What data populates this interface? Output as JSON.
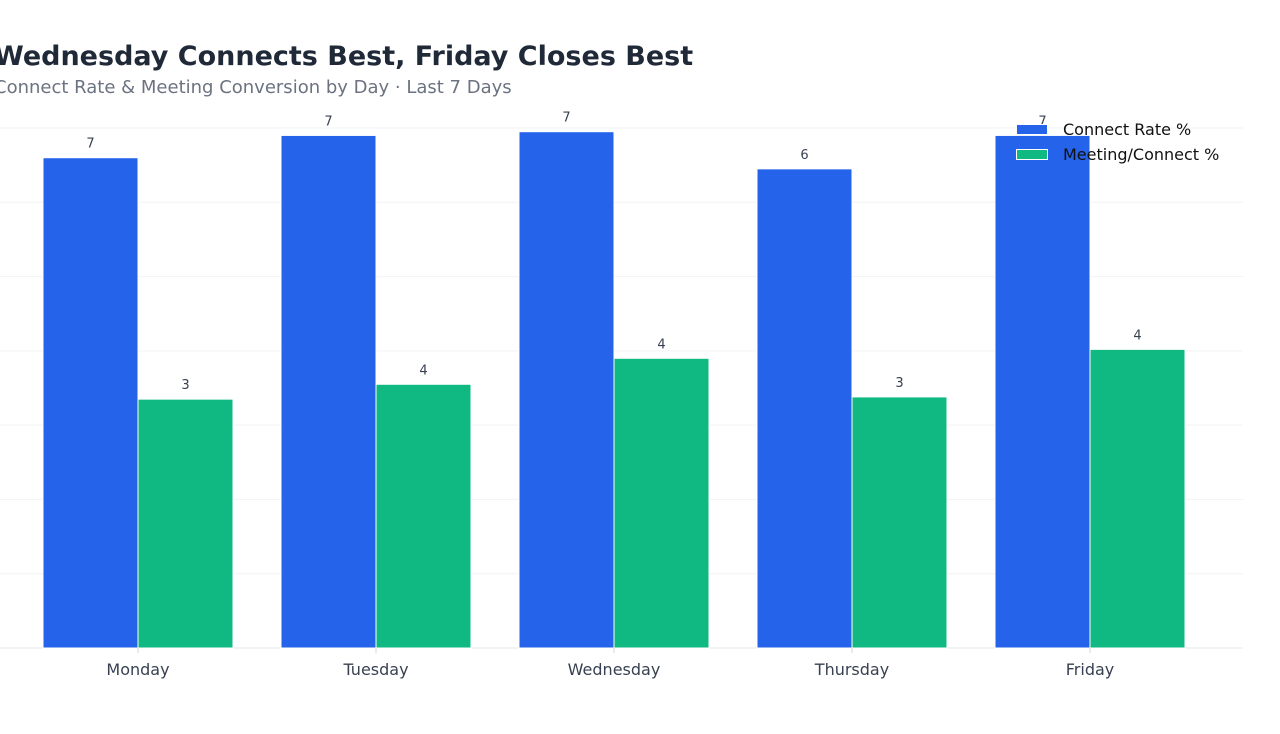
{
  "chart_data": {
    "type": "bar",
    "title": "Wednesday Connects Best, Friday Closes Best",
    "subtitle": "Connect Rate & Meeting Conversion by Day · Last 7 Days",
    "categories": [
      "Monday",
      "Tuesday",
      "Wednesday",
      "Thursday",
      "Friday"
    ],
    "series": [
      {
        "name": "Connect Rate %",
        "color": "#2563eb",
        "values": [
          6.6,
          6.9,
          6.95,
          6.45,
          6.9
        ],
        "labels": [
          "7",
          "7",
          "7",
          "6",
          "7"
        ]
      },
      {
        "name": "Meeting/Connect %",
        "color": "#10b981",
        "values": [
          3.35,
          3.55,
          3.9,
          3.38,
          4.02
        ],
        "labels": [
          "3",
          "4",
          "4",
          "3",
          "4"
        ]
      }
    ],
    "ylim": [
      0,
      7.0
    ],
    "grid": true,
    "legend": "top-right",
    "xlabel": "",
    "ylabel": ""
  }
}
